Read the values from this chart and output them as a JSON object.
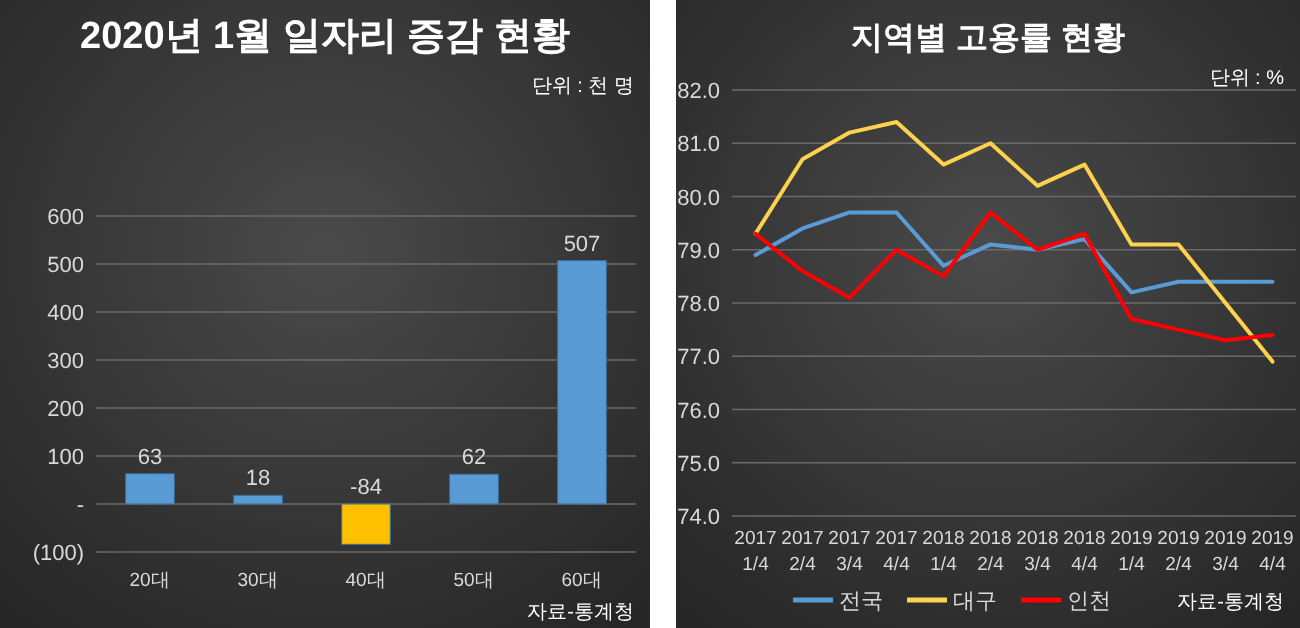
{
  "chart_data": [
    {
      "type": "bar",
      "title": "2020년 1월 일자리 증감 현황",
      "annotations": [
        "단위 : 천 명",
        "자료-통계청"
      ],
      "categories": [
        "20대",
        "30대",
        "40대",
        "50대",
        "60대"
      ],
      "values": [
        63,
        18,
        -84,
        62,
        507
      ],
      "colors": [
        "#5b9bd5",
        "#5b9bd5",
        "#ffc000",
        "#5b9bd5",
        "#5b9bd5"
      ],
      "ylim": [
        -100,
        600
      ],
      "yticks": [
        {
          "value": -100,
          "label": "(100)"
        },
        {
          "value": 0,
          "label": "-"
        },
        100,
        200,
        300,
        400,
        500,
        600
      ],
      "grid": "y",
      "data_labels": true
    },
    {
      "type": "line",
      "title": "지역별 고용률 현황",
      "annotations": [
        "단위 : %",
        "자료-통계청"
      ],
      "categories": [
        "2017 1/4",
        "2017 2/4",
        "2017 3/4",
        "2017 4/4",
        "2018 1/4",
        "2018 2/4",
        "2018 3/4",
        "2018 4/4",
        "2019 1/4",
        "2019 2/4",
        "2019 3/4",
        "2019 4/4"
      ],
      "series": [
        {
          "name": "전국",
          "color": "#5b9bd5",
          "values": [
            78.9,
            79.4,
            79.7,
            79.7,
            78.7,
            79.1,
            79.0,
            79.2,
            78.2,
            78.4,
            78.4,
            78.4
          ]
        },
        {
          "name": "대구",
          "color": "#ffd24d",
          "values": [
            79.3,
            80.7,
            81.2,
            81.4,
            80.6,
            81.0,
            80.2,
            80.6,
            79.1,
            79.1,
            78.0,
            76.9
          ]
        },
        {
          "name": "인천",
          "color": "#ff0000",
          "values": [
            79.3,
            78.6,
            78.1,
            79.0,
            78.5,
            79.7,
            79.0,
            79.3,
            77.7,
            77.5,
            77.3,
            77.4
          ]
        }
      ],
      "ylim": [
        74,
        82
      ],
      "yticks": [
        {
          "value": 74,
          "label": "74.0"
        },
        {
          "value": 75,
          "label": "75.0"
        },
        {
          "value": 76,
          "label": "76.0"
        },
        {
          "value": 77,
          "label": "77.0"
        },
        {
          "value": 78,
          "label": "78.0"
        },
        {
          "value": 79,
          "label": "79.0"
        },
        {
          "value": 80,
          "label": "80.0"
        },
        {
          "value": 81,
          "label": "81.0"
        },
        {
          "value": 82,
          "label": "82.0"
        }
      ],
      "grid": "y",
      "legend": "bottom"
    }
  ]
}
